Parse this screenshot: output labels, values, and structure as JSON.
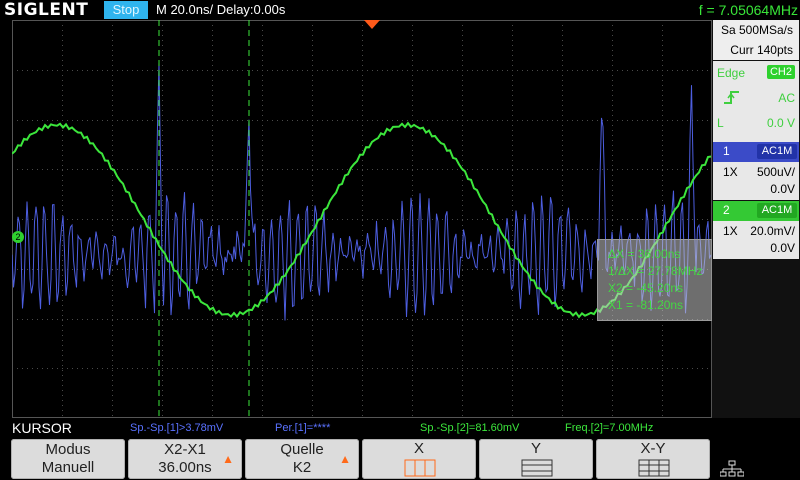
{
  "topbar": {
    "brand": "SIGLENT",
    "run_state": "Stop",
    "timebase": "M 20.0ns/  Delay:0.00s",
    "frequency": "f = 7.05064MHz"
  },
  "plot": {
    "ch2_ground_label": "2",
    "cursor_readout": {
      "dx": "ΔX = 36.00ns",
      "inv_dx": "1/ΔX = 27.78MHz",
      "x2": "X2 = -45.20ns",
      "x1": "X1 = -81.20ns"
    }
  },
  "right_panel": {
    "sample_rate": "Sa 500MSa/s",
    "memory": "Curr 140pts",
    "trigger": {
      "type": "Edge",
      "source": "CH2",
      "coupling": "AC",
      "level_label": "L",
      "level": "0.0 V"
    },
    "ch1": {
      "number": "1",
      "coupling": "AC1M",
      "probe": "1X",
      "scale": "500uV/",
      "offset": "0.0V"
    },
    "ch2": {
      "number": "2",
      "coupling": "AC1M",
      "probe": "1X",
      "scale": "20.0mV/",
      "offset": "0.0V"
    }
  },
  "status_line": {
    "menu_title": "KURSOR",
    "meas1": "Sp.-Sp.[1]>3.78mV",
    "meas2": "Per.[1]=****",
    "meas3": "Sp.-Sp.[2]=81.60mV",
    "meas4": "Freq.[2]=7.00MHz"
  },
  "softkeys": {
    "mode": {
      "line1": "Modus",
      "line2": "Manuell"
    },
    "cursor_sel": {
      "line1": "X2-X1",
      "line2": "36.00ns"
    },
    "source": {
      "line1": "Quelle",
      "line2": "K2"
    },
    "x_type": {
      "label": "X"
    },
    "y_type": {
      "label": "Y"
    },
    "xy_type": {
      "label": "X-Y"
    }
  },
  "colors": {
    "ch1": "#4d5ee0",
    "ch2": "#3ce63c",
    "run_state_bg": "#2fb4ee",
    "accent_arrow": "#ff6a1a"
  }
}
